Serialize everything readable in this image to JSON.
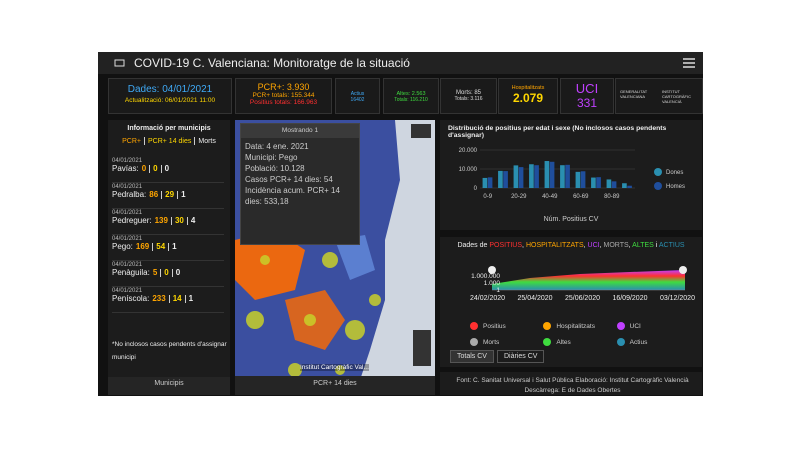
{
  "header": {
    "title": "COVID-19 C. Valenciana: Monitoratge de la situació"
  },
  "summary": {
    "dades": "Dades: 04/01/2021",
    "actualitzacio": "Actualització: 06/01/2021 11:00",
    "pcr": "PCR+: 3.930",
    "pcr_totals": "PCR+ totals: 155.344",
    "positius_totals": "Positius totals: 166.963",
    "actius_label": "Actius",
    "actius_value": "16402",
    "altes": "Altes: 2.563",
    "altes_totals": "Totals: 116.210",
    "morts": "Morts: 85",
    "morts_totals": "Totals: 3.116",
    "hosp_label": "Hospitalitzats",
    "hosp_value": "2.079",
    "uci_label": "UCI",
    "uci_value": "331",
    "logo1": "GENERALITAT VALENCIANA",
    "logo2": "INSTITUT CARTOGRÀFIC VALENCIÀ"
  },
  "municipis": {
    "title": "Informació per municipis",
    "columns": [
      "PCR+",
      "PCR+ 14 dies",
      "Morts"
    ],
    "items": [
      {
        "date": "04/01/2021",
        "name": "Pavías:",
        "values": [
          "0",
          "0",
          "0"
        ]
      },
      {
        "date": "04/01/2021",
        "name": "Pedralba:",
        "values": [
          "86",
          "29",
          "1"
        ]
      },
      {
        "date": "04/01/2021",
        "name": "Pedreguer:",
        "values": [
          "139",
          "30",
          "4"
        ]
      },
      {
        "date": "04/01/2021",
        "name": "Pego:",
        "values": [
          "169",
          "54",
          "1"
        ]
      },
      {
        "date": "04/01/2021",
        "name": "Penàguila:",
        "values": [
          "5",
          "0",
          "0"
        ]
      },
      {
        "date": "04/01/2021",
        "name": "Peníscola:",
        "values": [
          "233",
          "14",
          "1"
        ]
      }
    ],
    "note": "*No inclosos casos pendents d'assignar municipi",
    "footer": "Municipis"
  },
  "map": {
    "popup_title": "Mostrando 1",
    "popup_lines": [
      "Data: 4 ene. 2021",
      "Municipi: Pego",
      "Població: 10.128",
      "Casos PCR+ 14 dies: 54",
      "Incidència acum. PCR+ 14 dies: 533,18"
    ],
    "attribution": "Institut Cartogràfic Val...",
    "footer": "PCR+ 14 dies"
  },
  "chart_data": {
    "type": "bar",
    "title": "Distribució de positius per edat i sexe (No inclosos casos pendents d'assignar)",
    "categories": [
      "0-9",
      null,
      "20-29",
      null,
      "40-49",
      null,
      "60-69",
      null,
      "80-89",
      null
    ],
    "series": [
      {
        "name": "Dones",
        "color": "#2a8fb0",
        "values": [
          5300,
          9000,
          11900,
          12500,
          14200,
          12000,
          8500,
          5500,
          4500,
          2500
        ]
      },
      {
        "name": "Homes",
        "color": "#1f4e9c",
        "values": [
          5600,
          8900,
          11000,
          12000,
          13800,
          12200,
          8800,
          5700,
          3500,
          1200
        ]
      }
    ],
    "ylim": [
      0,
      20000
    ],
    "yticks": [
      0,
      {
        "value": 10000,
        "label": "10.000"
      },
      {
        "value": 20000,
        "label": "20.000"
      }
    ],
    "footer": "Núm. Positius CV"
  },
  "trend": {
    "title_parts": [
      "Dades de ",
      "POSITIUS",
      ", ",
      "HOSPITALITZATS",
      ", ",
      "UCI",
      ", ",
      "MORTS",
      ", ",
      "ALTES",
      " i ",
      "ACTIUS"
    ],
    "ylabels": [
      "1.000.000",
      "1.000",
      "1"
    ],
    "xlabels": [
      "24/02/2020",
      "25/04/2020",
      "25/06/2020",
      "16/09/2020",
      "03/12/2020"
    ],
    "legend": [
      "Positius",
      "Hospitalitzats",
      "UCI",
      "Morts",
      "Altes",
      "Actius"
    ],
    "tabs": [
      "Totals CV",
      "Diàries CV"
    ]
  },
  "footer": {
    "text": "Font: C. Sanitat Universal i Salut Pública Elaboració: Institut Cartogràfic Valencià Descàrrega: E de Dades Obertes"
  }
}
